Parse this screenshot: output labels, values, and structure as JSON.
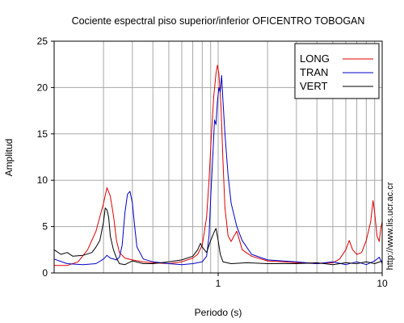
{
  "chart_data": {
    "type": "line",
    "title": "Cociente espectral piso superior/inferior OFICENTRO TOBOGAN",
    "xlabel": "Periodo (s)",
    "ylabel": "Amplitud",
    "x_scale": "log",
    "xlim": [
      0.1,
      10
    ],
    "ylim": [
      0,
      25
    ],
    "x_tick_labels": [
      {
        "value": 1,
        "label": "1"
      },
      {
        "value": 10,
        "label": "10"
      }
    ],
    "y_ticks": [
      0,
      5,
      10,
      15,
      20,
      25
    ],
    "grid": true,
    "legend_position": "top-right",
    "series": [
      {
        "name": "LONG",
        "color": "#e00000",
        "points": [
          [
            0.1,
            0.8
          ],
          [
            0.12,
            0.8
          ],
          [
            0.14,
            1.2
          ],
          [
            0.16,
            2.5
          ],
          [
            0.18,
            4.5
          ],
          [
            0.2,
            7.5
          ],
          [
            0.21,
            9.2
          ],
          [
            0.22,
            8.3
          ],
          [
            0.23,
            6.2
          ],
          [
            0.24,
            3.5
          ],
          [
            0.25,
            2.2
          ],
          [
            0.27,
            1.6
          ],
          [
            0.3,
            1.4
          ],
          [
            0.35,
            1.2
          ],
          [
            0.4,
            1.1
          ],
          [
            0.5,
            1.0
          ],
          [
            0.6,
            1.2
          ],
          [
            0.7,
            1.6
          ],
          [
            0.75,
            2.0
          ],
          [
            0.8,
            3.0
          ],
          [
            0.85,
            6.0
          ],
          [
            0.88,
            10.0
          ],
          [
            0.91,
            15.0
          ],
          [
            0.94,
            19.0
          ],
          [
            0.97,
            21.5
          ],
          [
            0.99,
            22.4
          ],
          [
            1.01,
            21.5
          ],
          [
            1.04,
            18.0
          ],
          [
            1.07,
            12.0
          ],
          [
            1.1,
            7.0
          ],
          [
            1.15,
            4.0
          ],
          [
            1.2,
            3.4
          ],
          [
            1.25,
            4.0
          ],
          [
            1.3,
            4.5
          ],
          [
            1.35,
            3.5
          ],
          [
            1.4,
            2.5
          ],
          [
            1.6,
            1.8
          ],
          [
            2.0,
            1.3
          ],
          [
            3.0,
            1.1
          ],
          [
            4.0,
            1.0
          ],
          [
            5.0,
            1.1
          ],
          [
            5.5,
            1.5
          ],
          [
            6.0,
            2.5
          ],
          [
            6.3,
            3.5
          ],
          [
            6.6,
            2.5
          ],
          [
            7.0,
            2.0
          ],
          [
            7.5,
            2.2
          ],
          [
            8.0,
            3.5
          ],
          [
            8.5,
            5.5
          ],
          [
            8.8,
            7.8
          ],
          [
            9.0,
            6.5
          ],
          [
            9.3,
            4.0
          ],
          [
            9.6,
            3.4
          ],
          [
            9.8,
            4.8
          ],
          [
            10.0,
            5.5
          ]
        ]
      },
      {
        "name": "TRAN",
        "color": "#0000c8",
        "points": [
          [
            0.1,
            1.5
          ],
          [
            0.12,
            1.0
          ],
          [
            0.15,
            0.9
          ],
          [
            0.18,
            1.0
          ],
          [
            0.2,
            1.5
          ],
          [
            0.21,
            1.9
          ],
          [
            0.22,
            1.6
          ],
          [
            0.24,
            1.4
          ],
          [
            0.25,
            1.7
          ],
          [
            0.26,
            3.0
          ],
          [
            0.27,
            6.5
          ],
          [
            0.28,
            8.5
          ],
          [
            0.29,
            8.8
          ],
          [
            0.3,
            7.5
          ],
          [
            0.31,
            5.0
          ],
          [
            0.32,
            2.8
          ],
          [
            0.35,
            1.5
          ],
          [
            0.4,
            1.2
          ],
          [
            0.5,
            1.0
          ],
          [
            0.6,
            0.9
          ],
          [
            0.7,
            1.0
          ],
          [
            0.8,
            1.2
          ],
          [
            0.85,
            1.8
          ],
          [
            0.88,
            4.0
          ],
          [
            0.9,
            8.0
          ],
          [
            0.93,
            13.0
          ],
          [
            0.95,
            16.5
          ],
          [
            0.97,
            16.0
          ],
          [
            0.99,
            18.5
          ],
          [
            1.01,
            20.0
          ],
          [
            1.03,
            19.5
          ],
          [
            1.05,
            21.3
          ],
          [
            1.07,
            18.5
          ],
          [
            1.1,
            15.0
          ],
          [
            1.15,
            10.5
          ],
          [
            1.2,
            7.5
          ],
          [
            1.3,
            5.0
          ],
          [
            1.4,
            3.5
          ],
          [
            1.6,
            2.0
          ],
          [
            2.0,
            1.4
          ],
          [
            3.0,
            1.2
          ],
          [
            4.0,
            1.0
          ],
          [
            5.0,
            1.2
          ],
          [
            6.0,
            0.9
          ],
          [
            7.0,
            1.2
          ],
          [
            8.0,
            0.9
          ],
          [
            9.0,
            1.3
          ],
          [
            9.6,
            1.7
          ],
          [
            10.0,
            1.0
          ]
        ]
      },
      {
        "name": "VERT",
        "color": "#000000",
        "points": [
          [
            0.1,
            2.5
          ],
          [
            0.11,
            2.0
          ],
          [
            0.12,
            2.2
          ],
          [
            0.13,
            1.8
          ],
          [
            0.15,
            1.9
          ],
          [
            0.17,
            2.2
          ],
          [
            0.18,
            2.8
          ],
          [
            0.19,
            3.5
          ],
          [
            0.2,
            5.5
          ],
          [
            0.205,
            7.0
          ],
          [
            0.21,
            6.8
          ],
          [
            0.215,
            6.0
          ],
          [
            0.22,
            4.0
          ],
          [
            0.23,
            2.5
          ],
          [
            0.24,
            1.6
          ],
          [
            0.25,
            1.0
          ],
          [
            0.27,
            0.9
          ],
          [
            0.3,
            1.3
          ],
          [
            0.35,
            1.0
          ],
          [
            0.4,
            1.0
          ],
          [
            0.5,
            1.2
          ],
          [
            0.6,
            1.4
          ],
          [
            0.7,
            1.8
          ],
          [
            0.75,
            2.5
          ],
          [
            0.78,
            3.2
          ],
          [
            0.8,
            2.8
          ],
          [
            0.85,
            2.2
          ],
          [
            0.9,
            3.5
          ],
          [
            0.95,
            4.5
          ],
          [
            0.97,
            4.8
          ],
          [
            1.0,
            3.5
          ],
          [
            1.03,
            2.0
          ],
          [
            1.07,
            1.2
          ],
          [
            1.2,
            1.0
          ],
          [
            1.5,
            1.1
          ],
          [
            2.0,
            1.0
          ],
          [
            3.0,
            1.0
          ],
          [
            4.0,
            1.1
          ],
          [
            5.0,
            0.9
          ],
          [
            6.0,
            1.1
          ],
          [
            7.0,
            1.0
          ],
          [
            8.0,
            1.2
          ],
          [
            9.0,
            1.0
          ],
          [
            10.0,
            1.3
          ]
        ]
      }
    ]
  },
  "side_text": "http://www.lis.ucr.ac.cr"
}
